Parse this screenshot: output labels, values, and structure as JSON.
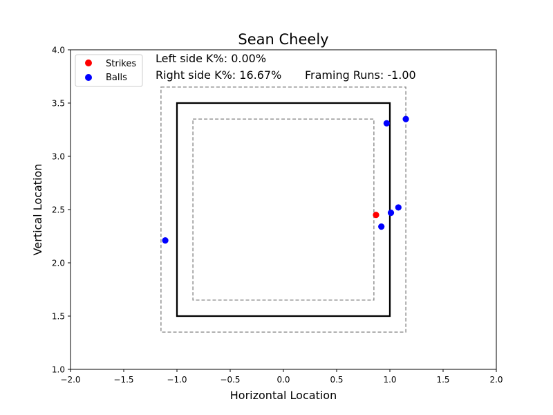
{
  "chart_data": {
    "type": "scatter",
    "title": "Sean Cheely",
    "xlabel": "Horizontal Location",
    "ylabel": "Vertical Location",
    "xlim": [
      -2.0,
      2.0
    ],
    "ylim": [
      1.0,
      4.0
    ],
    "x_ticks": [
      -2.0,
      -1.5,
      -1.0,
      -0.5,
      0.0,
      0.5,
      1.0,
      1.5,
      2.0
    ],
    "x_tick_labels": [
      "−2.0",
      "−1.5",
      "−1.0",
      "−0.5",
      "0.0",
      "0.5",
      "1.0",
      "1.5",
      "2.0"
    ],
    "y_ticks": [
      1.0,
      1.5,
      2.0,
      2.5,
      3.0,
      3.5,
      4.0
    ],
    "y_tick_labels": [
      "1.0",
      "1.5",
      "2.0",
      "2.5",
      "3.0",
      "3.5",
      "4.0"
    ],
    "grid": false,
    "legend_position": "upper-left",
    "annotations": {
      "left_k": "Left side K%: 0.00%",
      "right_k": "Right side K%: 16.67%",
      "framing": "Framing Runs: -1.00"
    },
    "strike_zone": {
      "x": [
        -1.0,
        1.0
      ],
      "y": [
        1.5,
        3.5
      ]
    },
    "outer_zone": {
      "x": [
        -1.15,
        1.15
      ],
      "y": [
        1.35,
        3.65
      ]
    },
    "inner_zone": {
      "x": [
        -0.85,
        0.85
      ],
      "y": [
        1.65,
        3.35
      ]
    },
    "series": [
      {
        "name": "Strikes",
        "color": "#ff0000",
        "points": [
          {
            "x": 0.87,
            "y": 2.45
          }
        ]
      },
      {
        "name": "Balls",
        "color": "#0000ff",
        "points": [
          {
            "x": -1.11,
            "y": 2.21
          },
          {
            "x": 0.92,
            "y": 2.34
          },
          {
            "x": 1.01,
            "y": 2.47
          },
          {
            "x": 1.08,
            "y": 2.52
          },
          {
            "x": 0.97,
            "y": 3.31
          },
          {
            "x": 1.15,
            "y": 3.35
          }
        ]
      }
    ]
  }
}
